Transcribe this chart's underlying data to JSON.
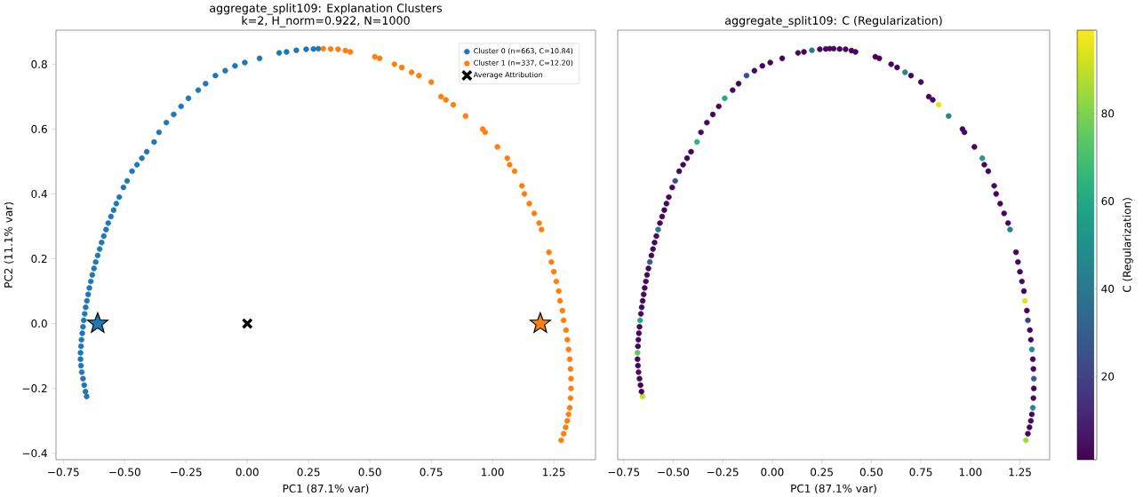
{
  "chart_data": [
    {
      "type": "scatter",
      "title": "aggregate_split109: Explanation Clusters",
      "subtitle": "k=2, H_norm=0.922, N=1000",
      "xlabel": "PC1 (87.1% var)",
      "ylabel": "PC2 (11.1% var)",
      "xlim": [
        -0.78,
        1.42
      ],
      "ylim": [
        -0.42,
        0.905
      ],
      "xticks": [
        {
          "value": -0.75,
          "label": "−0.75"
        },
        {
          "value": -0.5,
          "label": "−0.50"
        },
        {
          "value": -0.25,
          "label": "−0.25"
        },
        {
          "value": 0,
          "label": "0.00"
        },
        {
          "value": 0.25,
          "label": "0.25"
        },
        {
          "value": 0.5,
          "label": "0.50"
        },
        {
          "value": 0.75,
          "label": "0.75"
        },
        {
          "value": 1.0,
          "label": "1.00"
        },
        {
          "value": 1.25,
          "label": "1.25"
        }
      ],
      "yticks": [
        {
          "value": -0.4,
          "label": "−0.4"
        },
        {
          "value": -0.2,
          "label": "−0.2"
        },
        {
          "value": 0,
          "label": "0.0"
        },
        {
          "value": 0.2,
          "label": "0.2"
        },
        {
          "value": 0.4,
          "label": "0.4"
        },
        {
          "value": 0.6,
          "label": "0.6"
        },
        {
          "value": 0.8,
          "label": "0.8"
        }
      ],
      "legend": "top right",
      "series": [
        {
          "name": "Cluster 0 (n=663, C=10.84)",
          "color": "#1f77b4",
          "marker": "circle",
          "x": [
            -0.655,
            -0.66,
            -0.665,
            -0.67,
            -0.675,
            -0.678,
            -0.68,
            -0.68,
            -0.678,
            -0.676,
            -0.673,
            -0.67,
            -0.667,
            -0.663,
            -0.659,
            -0.654,
            -0.649,
            -0.644,
            -0.638,
            -0.632,
            -0.625,
            -0.618,
            -0.61,
            -0.602,
            -0.594,
            -0.585,
            -0.576,
            -0.567,
            -0.556,
            -0.545,
            -0.534,
            -0.522,
            -0.505,
            -0.49,
            -0.47,
            -0.45,
            -0.43,
            -0.41,
            -0.38,
            -0.36,
            -0.33,
            -0.3,
            -0.27,
            -0.24,
            -0.2,
            -0.17,
            -0.13,
            -0.09,
            -0.05,
            -0.01,
            0.05,
            0.13,
            0.16,
            0.2,
            0.24,
            0.27,
            0.29
          ],
          "values": [
            -0.225,
            -0.21,
            -0.19,
            -0.17,
            -0.15,
            -0.13,
            -0.11,
            -0.09,
            -0.07,
            -0.05,
            -0.03,
            -0.01,
            0.01,
            0.03,
            0.05,
            0.07,
            0.09,
            0.11,
            0.13,
            0.15,
            0.17,
            0.19,
            0.21,
            0.23,
            0.25,
            0.27,
            0.29,
            0.31,
            0.33,
            0.35,
            0.37,
            0.39,
            0.42,
            0.44,
            0.47,
            0.49,
            0.51,
            0.53,
            0.56,
            0.59,
            0.62,
            0.645,
            0.67,
            0.695,
            0.72,
            0.74,
            0.765,
            0.78,
            0.795,
            0.805,
            0.818,
            0.835,
            0.838,
            0.843,
            0.846,
            0.847,
            0.848
          ]
        },
        {
          "name": "Cluster 1 (n=337, C=12.20)",
          "color": "#ff7f0e",
          "marker": "circle",
          "x": [
            0.31,
            0.34,
            0.37,
            0.4,
            0.42,
            0.52,
            0.54,
            0.6,
            0.63,
            0.67,
            0.7,
            0.75,
            0.79,
            0.81,
            0.84,
            0.89,
            0.96,
            0.97,
            1.02,
            1.06,
            1.07,
            1.09,
            1.12,
            1.13,
            1.15,
            1.17,
            1.19,
            1.2,
            1.23,
            1.24,
            1.25,
            1.26,
            1.27,
            1.275,
            1.285,
            1.29,
            1.3,
            1.305,
            1.31,
            1.315,
            1.318,
            1.32,
            1.32,
            1.318,
            1.315,
            1.31,
            1.305,
            1.298,
            1.29,
            1.28
          ],
          "values": [
            0.848,
            0.847,
            0.846,
            0.842,
            0.838,
            0.823,
            0.818,
            0.8,
            0.79,
            0.775,
            0.765,
            0.745,
            0.7,
            0.69,
            0.675,
            0.64,
            0.6,
            0.59,
            0.545,
            0.51,
            0.49,
            0.47,
            0.425,
            0.4,
            0.37,
            0.34,
            0.31,
            0.29,
            0.22,
            0.19,
            0.16,
            0.13,
            0.1,
            0.07,
            0.04,
            0.01,
            -0.02,
            -0.05,
            -0.08,
            -0.11,
            -0.14,
            -0.17,
            -0.2,
            -0.23,
            -0.26,
            -0.28,
            -0.3,
            -0.32,
            -0.34,
            -0.36
          ]
        },
        {
          "colors": [
            "#1f77b4",
            "#ff7f0e"
          ],
          "marker": "star",
          "x": [
            -0.61,
            1.195
          ],
          "values": [
            0,
            0
          ]
        },
        {
          "name": "Average Attribution",
          "color": "#000000",
          "marker": "cross",
          "x": [
            0
          ],
          "values": [
            0
          ]
        }
      ]
    },
    {
      "type": "scatter",
      "title": "aggregate_split109: C (Regularization)",
      "xlabel": "PC1 (87.1% var)",
      "clabel": "C (Regularization)",
      "xlim": [
        -0.78,
        1.4
      ],
      "ylim": [
        -0.42,
        0.905
      ],
      "tick_labels": "x",
      "marker": "circle",
      "xticks": [
        {
          "value": -0.75,
          "label": "−0.75"
        },
        {
          "value": -0.5,
          "label": "−0.50"
        },
        {
          "value": -0.25,
          "label": "−0.25"
        },
        {
          "value": 0,
          "label": "0.00"
        },
        {
          "value": 0.25,
          "label": "0.25"
        },
        {
          "value": 0.5,
          "label": "0.50"
        },
        {
          "value": 0.75,
          "label": "0.75"
        },
        {
          "value": 1.0,
          "label": "1.00"
        },
        {
          "value": 1.25,
          "label": "1.25"
        }
      ],
      "clim": [
        1,
        99
      ],
      "cticks": [
        20,
        40,
        60,
        80
      ],
      "series": [
        {
          "x": [
            -0.655,
            -0.66,
            -0.665,
            -0.67,
            -0.675,
            -0.678,
            -0.68,
            -0.68,
            -0.678,
            -0.676,
            -0.673,
            -0.67,
            -0.667,
            -0.663,
            -0.659,
            -0.654,
            -0.649,
            -0.644,
            -0.638,
            -0.632,
            -0.625,
            -0.618,
            -0.61,
            -0.602,
            -0.594,
            -0.585,
            -0.576,
            -0.567,
            -0.556,
            -0.545,
            -0.534,
            -0.522,
            -0.505,
            -0.49,
            -0.47,
            -0.45,
            -0.43,
            -0.41,
            -0.38,
            -0.36,
            -0.33,
            -0.3,
            -0.27,
            -0.24,
            -0.2,
            -0.17,
            -0.13,
            -0.09,
            -0.05,
            -0.01,
            0.05,
            0.13,
            0.16,
            0.2,
            0.24,
            0.27,
            0.29,
            0.31,
            0.34,
            0.37,
            0.4,
            0.42,
            0.52,
            0.54,
            0.6,
            0.63,
            0.67,
            0.7,
            0.75,
            0.79,
            0.81,
            0.84,
            0.89,
            0.96,
            0.97,
            1.02,
            1.06,
            1.07,
            1.09,
            1.12,
            1.13,
            1.15,
            1.17,
            1.19,
            1.2,
            1.23,
            1.24,
            1.25,
            1.26,
            1.27,
            1.275,
            1.285,
            1.29,
            1.3,
            1.305,
            1.31,
            1.315,
            1.318,
            1.32,
            1.32,
            1.318,
            1.315,
            1.31,
            1.305,
            1.298,
            1.29,
            1.28
          ],
          "values": [
            -0.225,
            -0.21,
            -0.19,
            -0.17,
            -0.15,
            -0.13,
            -0.11,
            -0.09,
            -0.07,
            -0.05,
            -0.03,
            -0.01,
            0.01,
            0.03,
            0.05,
            0.07,
            0.09,
            0.11,
            0.13,
            0.15,
            0.17,
            0.19,
            0.21,
            0.23,
            0.25,
            0.27,
            0.29,
            0.31,
            0.33,
            0.35,
            0.37,
            0.39,
            0.42,
            0.44,
            0.47,
            0.49,
            0.51,
            0.53,
            0.56,
            0.59,
            0.62,
            0.645,
            0.67,
            0.695,
            0.72,
            0.74,
            0.765,
            0.78,
            0.795,
            0.805,
            0.818,
            0.835,
            0.838,
            0.843,
            0.846,
            0.847,
            0.848,
            0.848,
            0.847,
            0.846,
            0.842,
            0.838,
            0.823,
            0.818,
            0.8,
            0.79,
            0.775,
            0.765,
            0.745,
            0.7,
            0.69,
            0.675,
            0.64,
            0.6,
            0.59,
            0.545,
            0.51,
            0.49,
            0.47,
            0.425,
            0.4,
            0.37,
            0.34,
            0.31,
            0.29,
            0.22,
            0.19,
            0.16,
            0.13,
            0.1,
            0.07,
            0.04,
            0.01,
            -0.02,
            -0.05,
            -0.08,
            -0.11,
            -0.14,
            -0.17,
            -0.2,
            -0.23,
            -0.26,
            -0.28,
            -0.3,
            -0.32,
            -0.34,
            -0.36
          ],
          "cvalues": [
            90,
            3,
            2,
            3,
            5,
            2,
            3,
            75,
            2,
            3,
            2,
            3,
            60,
            2,
            3,
            2,
            4,
            2,
            3,
            2,
            3,
            30,
            2,
            3,
            2,
            3,
            40,
            2,
            3,
            2,
            3,
            2,
            3,
            25,
            3,
            2,
            3,
            2,
            65,
            3,
            2,
            3,
            2,
            60,
            3,
            2,
            25,
            3,
            2,
            3,
            2,
            3,
            2,
            40,
            3,
            2,
            3,
            3,
            2,
            3,
            2,
            3,
            2,
            3,
            2,
            3,
            45,
            2,
            3,
            2,
            3,
            95,
            45,
            2,
            3,
            2,
            55,
            3,
            2,
            3,
            2,
            3,
            2,
            3,
            45,
            2,
            3,
            2,
            3,
            2,
            95,
            3,
            20,
            2,
            3,
            50,
            2,
            3,
            30,
            2,
            3,
            45,
            2,
            3,
            2,
            3,
            85
          ]
        }
      ]
    }
  ]
}
